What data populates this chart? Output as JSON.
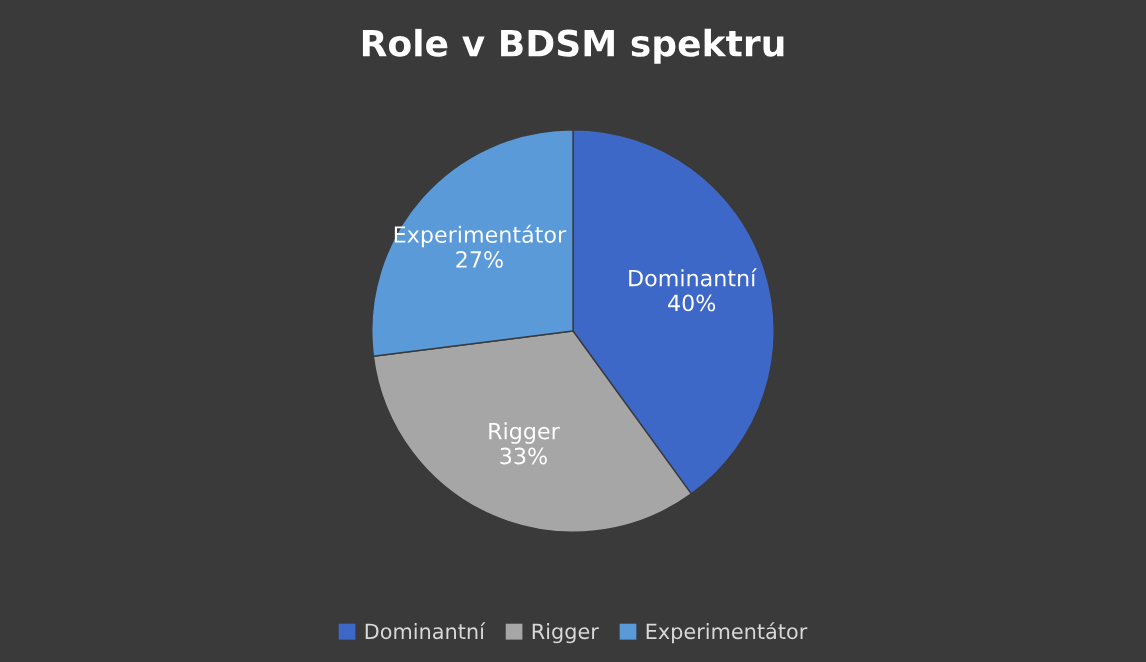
{
  "chart_data": {
    "type": "pie",
    "title": "Role v BDSM spektru",
    "categories": [
      "Dominantní",
      "Rigger",
      "Experimentátor"
    ],
    "values": [
      40,
      33,
      27
    ],
    "colors": [
      "#3e68c8",
      "#a6a6a6",
      "#5a9ad8"
    ],
    "value_labels": [
      "40%",
      "33%",
      "27%"
    ],
    "legend": "bottom"
  }
}
